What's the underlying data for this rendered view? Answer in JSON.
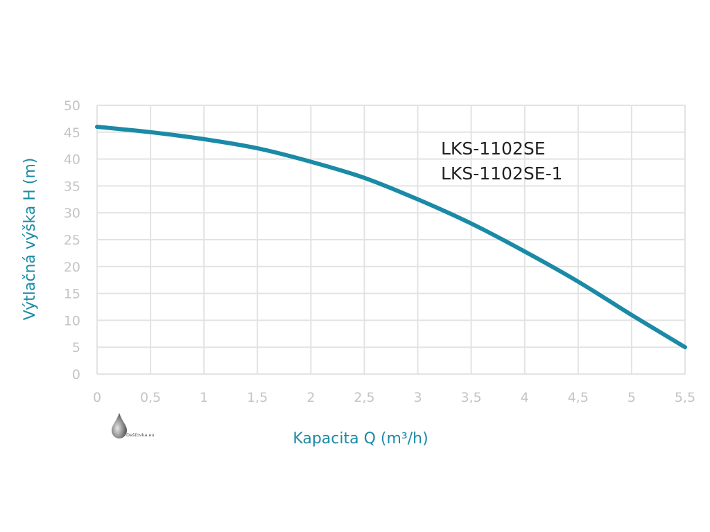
{
  "chart_data": {
    "type": "line",
    "xlabel": "Kapacita Q (m³/h)",
    "ylabel": "Výtlačná výška H (m)",
    "xlim": [
      0,
      5.5
    ],
    "ylim": [
      0,
      50
    ],
    "grid": true,
    "x_ticks": [
      "0",
      "0,5",
      "1",
      "1,5",
      "2",
      "2,5",
      "3",
      "3,5",
      "4",
      "4,5",
      "5",
      "5,5"
    ],
    "y_ticks": [
      "0",
      "5",
      "10",
      "15",
      "20",
      "25",
      "30",
      "35",
      "40",
      "45",
      "50"
    ],
    "legend_lines": [
      "LKS-1102SE",
      "LKS-1102SE-1"
    ],
    "legend_position": "top-right",
    "series": [
      {
        "color": "#1b8aa6",
        "x": [
          0,
          0.5,
          1,
          1.5,
          2,
          2.5,
          3,
          3.5,
          4,
          4.5,
          5,
          5.5
        ],
        "y": [
          46,
          45,
          43.7,
          42,
          39.5,
          36.5,
          32.5,
          28,
          22.8,
          17.2,
          11,
          5
        ]
      }
    ]
  },
  "watermark": {
    "text": "Dešťovka.eu",
    "icon": "water-drop-icon"
  }
}
